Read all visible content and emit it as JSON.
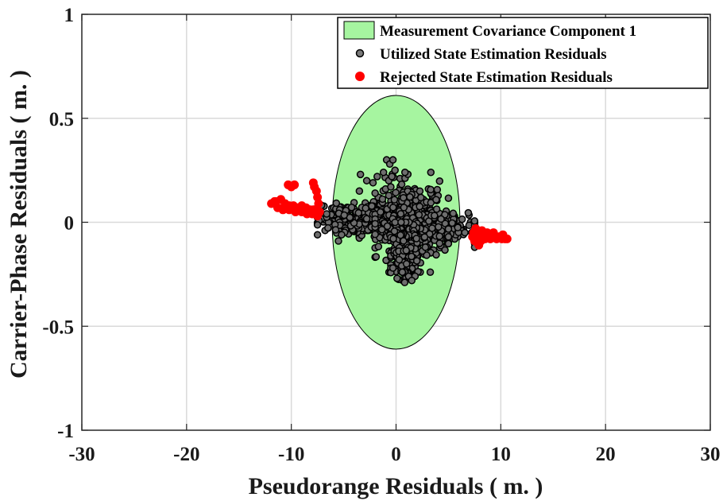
{
  "chart_data": {
    "type": "scatter",
    "title": "",
    "xlabel": "Pseudorange Residuals ( m. )",
    "ylabel": "Carrier-Phase Residuals ( m. )",
    "xlim": [
      -30,
      30
    ],
    "ylim": [
      -1,
      1
    ],
    "xticks": [
      -30,
      -20,
      -10,
      0,
      10,
      20,
      30
    ],
    "yticks": [
      -1,
      -0.5,
      0,
      0.5,
      1
    ],
    "xtick_labels": [
      "-30",
      "-20",
      "-10",
      "0",
      "10",
      "20",
      "30"
    ],
    "ytick_labels": [
      "-1",
      "-0.5",
      "0",
      "0.5",
      "1"
    ],
    "grid": true,
    "legend_position": "top-right",
    "ellipse": {
      "name": "Measurement Covariance Component 1",
      "center": [
        0,
        0
      ],
      "semi_axis_x": 6.1,
      "semi_axis_y": 0.61,
      "fill": "#a6f5a0"
    },
    "series": [
      {
        "name": "Utilized State Estimation Residuals",
        "color": "#000000",
        "marker": "circle-gray",
        "clusters": [
          {
            "x_range": [
              -7.5,
              7.5
            ],
            "y_center": 0.0,
            "y_spread": 0.06,
            "tilt": -0.004,
            "count": 900
          },
          {
            "x_range": [
              -2.0,
              5.0
            ],
            "y_center": 0.0,
            "y_spread": 0.16,
            "tilt": 0.0,
            "count": 380
          },
          {
            "x_range": [
              -0.5,
              2.0
            ],
            "y_center": -0.15,
            "y_spread": 0.1,
            "tilt": 0.0,
            "count": 200
          }
        ],
        "points": [
          [
            -0.9,
            0.3
          ],
          [
            -0.6,
            0.28
          ],
          [
            -0.3,
            0.3
          ],
          [
            -0.1,
            0.25
          ],
          [
            -0.4,
            0.22
          ],
          [
            -1.8,
            0.22
          ],
          [
            -1.2,
            0.24
          ],
          [
            -3.4,
            0.23
          ],
          [
            -2.8,
            0.2
          ],
          [
            -2.2,
            0.19
          ],
          [
            -1.0,
            0.16
          ],
          [
            -3.5,
            0.15
          ],
          [
            -2.0,
            0.14
          ],
          [
            -0.5,
            0.17
          ],
          [
            0.1,
            -0.27
          ],
          [
            0.6,
            -0.24
          ],
          [
            1.2,
            -0.26
          ],
          [
            1.5,
            -0.28
          ],
          [
            -0.3,
            -0.22
          ],
          [
            0.3,
            -0.18
          ],
          [
            1.0,
            -0.2
          ],
          [
            -5.5,
            -0.09
          ],
          [
            -5.2,
            -0.06
          ],
          [
            2.8,
            -0.12
          ]
        ]
      },
      {
        "name": "Rejected State Estimation Residuals",
        "color": "#ff0000",
        "marker": "circle-red",
        "points": [
          [
            -11.9,
            0.09
          ],
          [
            -11.5,
            0.1
          ],
          [
            -11.0,
            0.11
          ],
          [
            -10.6,
            0.09
          ],
          [
            -10.2,
            0.08
          ],
          [
            -9.8,
            0.08
          ],
          [
            -9.4,
            0.07
          ],
          [
            -9.0,
            0.08
          ],
          [
            -8.6,
            0.07
          ],
          [
            -8.2,
            0.06
          ],
          [
            -7.9,
            0.06
          ],
          [
            -7.6,
            0.05
          ],
          [
            -7.3,
            0.05
          ],
          [
            -11.3,
            0.07
          ],
          [
            -10.8,
            0.06
          ],
          [
            -10.2,
            0.06
          ],
          [
            -9.6,
            0.05
          ],
          [
            -9.0,
            0.05
          ],
          [
            -8.5,
            0.04
          ],
          [
            -8.0,
            0.04
          ],
          [
            -7.5,
            0.03
          ],
          [
            -10.3,
            0.18
          ],
          [
            -10.0,
            0.17
          ],
          [
            -9.7,
            0.18
          ],
          [
            -7.9,
            0.19
          ],
          [
            -7.8,
            0.17
          ],
          [
            -7.6,
            0.15
          ],
          [
            -7.5,
            0.12
          ],
          [
            -7.4,
            0.09
          ],
          [
            -11.6,
            0.1
          ],
          [
            7.4,
            -0.05
          ],
          [
            7.7,
            -0.06
          ],
          [
            8.0,
            -0.07
          ],
          [
            8.3,
            -0.06
          ],
          [
            8.6,
            -0.06
          ],
          [
            8.9,
            -0.07
          ],
          [
            9.2,
            -0.06
          ],
          [
            9.5,
            -0.07
          ],
          [
            9.8,
            -0.07
          ],
          [
            10.1,
            -0.08
          ],
          [
            10.4,
            -0.08
          ],
          [
            10.6,
            -0.08
          ],
          [
            7.5,
            -0.09
          ],
          [
            7.8,
            -0.1
          ],
          [
            8.1,
            -0.09
          ],
          [
            8.5,
            -0.08
          ],
          [
            9.0,
            -0.08
          ],
          [
            9.6,
            -0.08
          ],
          [
            7.6,
            -0.03
          ],
          [
            8.2,
            -0.04
          ],
          [
            7.3,
            -0.07
          ],
          [
            7.9,
            -0.11
          ],
          [
            8.7,
            -0.05
          ],
          [
            10.2,
            -0.06
          ],
          [
            9.3,
            -0.05
          ]
        ]
      }
    ]
  }
}
